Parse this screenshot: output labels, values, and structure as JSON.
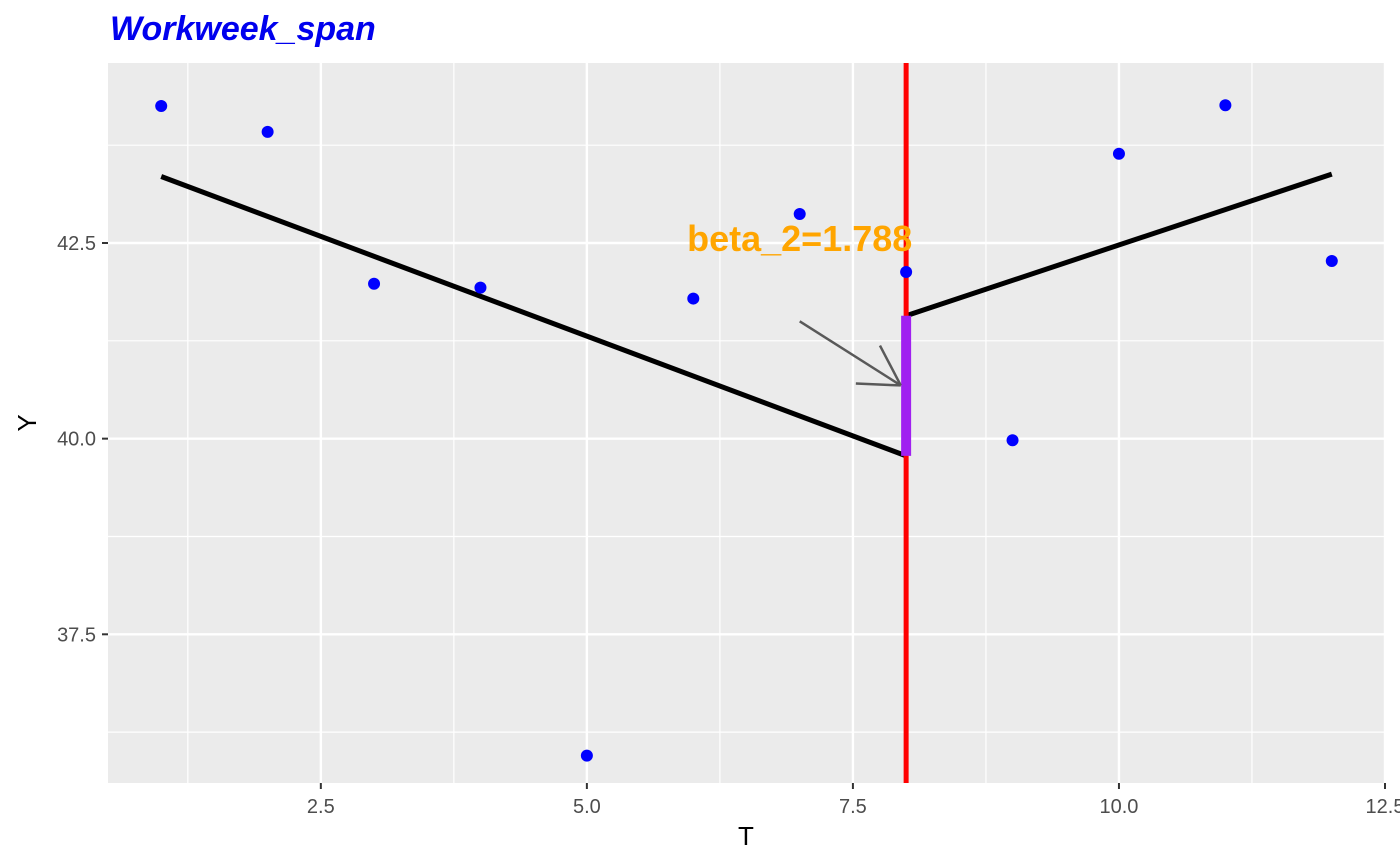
{
  "chart_data": {
    "type": "scatter",
    "title": "Workweek_span",
    "xlabel": "T",
    "ylabel": "Y",
    "xlim": [
      0.5,
      12.5
    ],
    "ylim": [
      35.6,
      44.8
    ],
    "x_ticks": [
      2.5,
      5.0,
      7.5,
      10.0,
      12.5
    ],
    "x_tick_labels": [
      "2.5",
      "5.0",
      "7.5",
      "10.0",
      "12.5"
    ],
    "y_ticks": [
      37.5,
      40.0,
      42.5
    ],
    "y_tick_labels": [
      "37.5",
      "40.0",
      "42.5"
    ],
    "grid": true,
    "points": {
      "color": "#0000ff",
      "x": [
        1,
        2,
        3,
        4,
        5,
        6,
        7,
        8,
        9,
        10,
        11,
        12
      ],
      "y": [
        44.25,
        43.92,
        41.98,
        41.93,
        35.95,
        41.79,
        42.87,
        42.13,
        39.98,
        43.64,
        44.26,
        42.27
      ]
    },
    "fit_segments": [
      {
        "x": [
          1,
          8
        ],
        "y": [
          43.35,
          39.78
        ],
        "color": "#000000"
      },
      {
        "x": [
          8,
          12
        ],
        "y": [
          41.57,
          43.38
        ],
        "color": "#000000"
      }
    ],
    "breakpoint": {
      "x": 8,
      "color": "#ff0000"
    },
    "jump": {
      "x": 8,
      "y_from": 39.78,
      "y_to": 41.57,
      "color": "#a020f0"
    },
    "annotation": {
      "text": "beta_2=1.788",
      "x": 7.0,
      "y": 42.4,
      "color": "#ffa500",
      "arrow_to": {
        "x": 7.95,
        "y": 40.68
      },
      "arrow_from": {
        "x": 7.0,
        "y": 41.5
      }
    }
  }
}
